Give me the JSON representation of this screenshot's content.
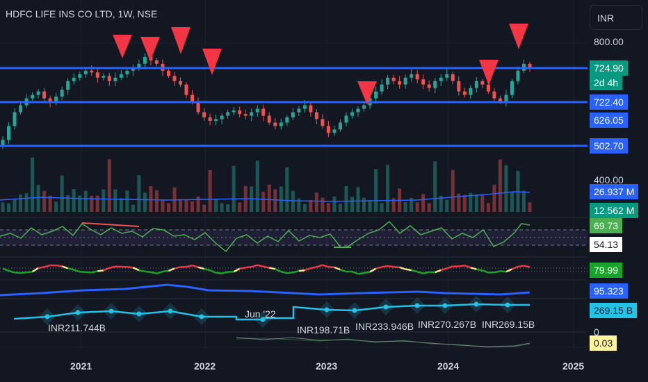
{
  "header": {
    "title": "HDFC LIFE INS CO LTD, 1W, NSE",
    "currency": "INR"
  },
  "price_axis": {
    "top_tick": "800.00",
    "vol_tick": "400.00",
    "zero_tick": "0"
  },
  "levels": [
    {
      "label": "724.90",
      "color": "#2962ff"
    },
    {
      "label": "722.40",
      "color": "#2962ff"
    },
    {
      "label": "502.70",
      "color": "#2962ff"
    }
  ],
  "badges": {
    "last_price": "724.90",
    "countdown": "2d 4h",
    "mid_price": "626.05",
    "vol_a": "26.937 M",
    "vol_b": "12.562 M",
    "rsi_a": "69.73",
    "rsi_b": "54.13",
    "osc": "79.99",
    "blue_ind": "95.323",
    "cash": "269.15 B",
    "bottom": "0.03"
  },
  "steps": {
    "labels": [
      "INR211.744B",
      "INR198.71B",
      "INR233.946B",
      "INR270.267B",
      "INR269.15B"
    ],
    "date_label": "Jun '22"
  },
  "x_axis": [
    "2021",
    "2022",
    "2023",
    "2024",
    "2025"
  ],
  "colors": {
    "up": "#26a69a",
    "down": "#ef5350",
    "level": "#2962ff",
    "signal": "#f23645",
    "rsi": "#4caf50",
    "cyan": "#22c3e6"
  },
  "chart_data": {
    "type": "candlestick",
    "price_levels": [
      724.9,
      722.4,
      626.05,
      502.7
    ],
    "last_price": 724.9,
    "x_ticks": [
      "2021",
      "2022",
      "2023",
      "2024",
      "2025"
    ],
    "close_series": [
      520,
      560,
      600,
      620,
      640,
      650,
      660,
      640,
      630,
      645,
      665,
      690,
      700,
      710,
      720,
      715,
      700,
      705,
      690,
      700,
      710,
      720,
      730,
      740,
      760,
      750,
      740,
      720,
      705,
      690,
      680,
      650,
      630,
      600,
      585,
      575,
      580,
      590,
      600,
      605,
      595,
      590,
      600,
      610,
      590,
      570,
      560,
      570,
      585,
      600,
      610,
      620,
      600,
      580,
      560,
      540,
      550,
      570,
      590,
      600,
      610,
      620,
      640,
      660,
      680,
      700,
      690,
      680,
      700,
      710,
      695,
      680,
      670,
      690,
      700,
      710,
      690,
      660,
      650,
      670,
      690,
      680,
      660,
      640,
      630,
      650,
      690,
      720,
      740,
      725
    ]
  }
}
